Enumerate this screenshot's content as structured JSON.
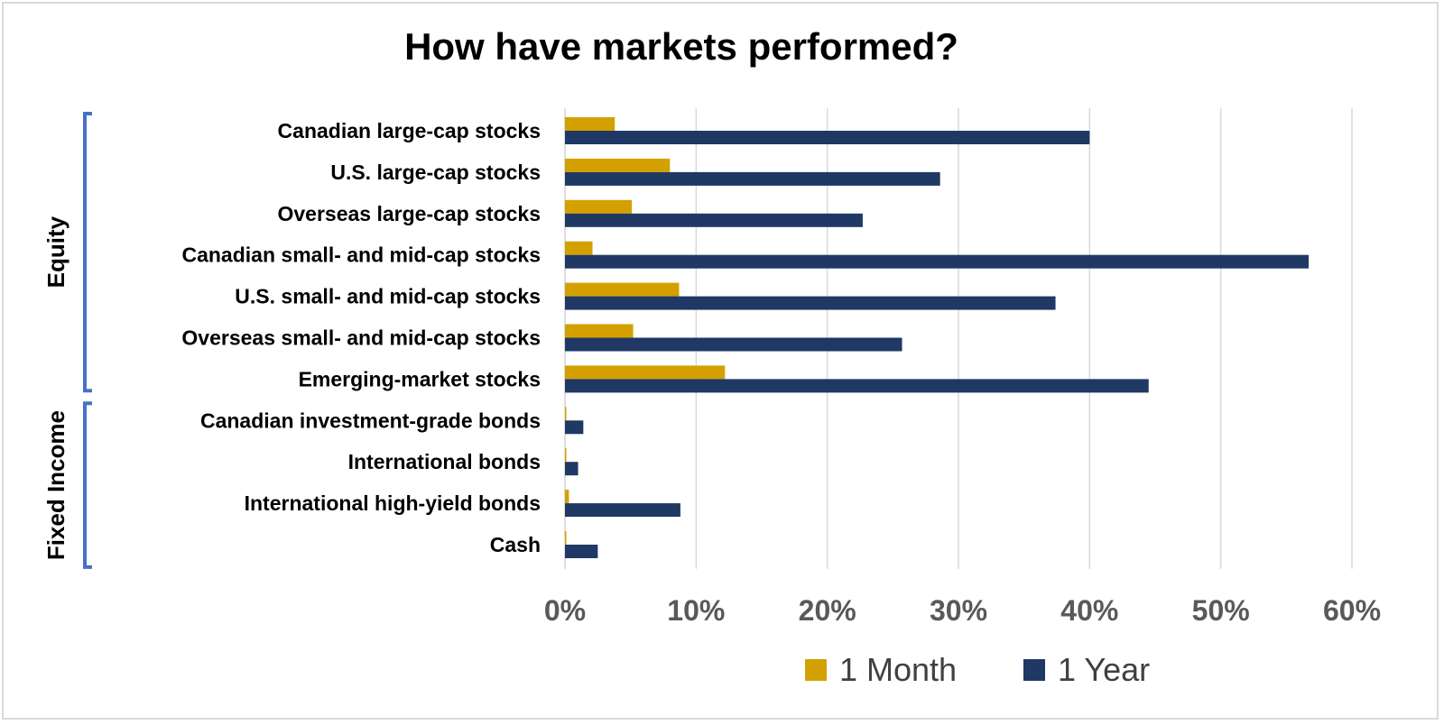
{
  "chart_data": {
    "type": "bar",
    "orientation": "horizontal",
    "title": "How have markets performed?",
    "categories": [
      "Canadian large-cap stocks",
      "U.S. large-cap stocks",
      "Overseas large-cap stocks",
      "Canadian small- and mid-cap stocks",
      "U.S. small- and mid-cap stocks",
      "Overseas small- and mid-cap stocks",
      "Emerging-market stocks",
      "Canadian investment-grade bonds",
      "International bonds",
      "International high-yield bonds",
      "Cash"
    ],
    "series": [
      {
        "name": "1 Month",
        "color": "#d4a000",
        "values": [
          3.8,
          8.0,
          5.1,
          2.1,
          8.7,
          5.2,
          12.2,
          0.1,
          0.1,
          0.3,
          0.1
        ]
      },
      {
        "name": "1 Year",
        "color": "#1f3864",
        "values": [
          40.0,
          28.6,
          22.7,
          56.7,
          37.4,
          25.7,
          44.5,
          1.4,
          1.0,
          8.8,
          2.5
        ]
      }
    ],
    "groups": [
      {
        "label": "Equity",
        "start": 0,
        "end": 6
      },
      {
        "label": "Fixed Income",
        "start": 7,
        "end": 10
      }
    ],
    "x_ticks": [
      "0%",
      "10%",
      "20%",
      "30%",
      "40%",
      "50%",
      "60%"
    ],
    "xlim": [
      0,
      60
    ],
    "grid": true,
    "legend_position": "bottom"
  }
}
